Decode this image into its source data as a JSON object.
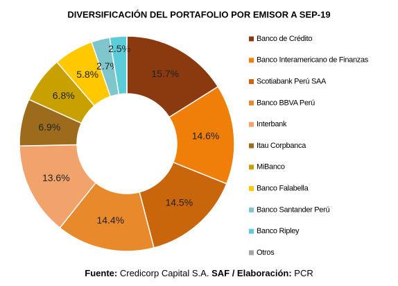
{
  "chart_data": {
    "type": "donut",
    "title": "DIVERSIFICACIÓN DEL PORTAFOLIO POR EMISOR A SEP-19",
    "categories": [
      "Banco de Crédito",
      "Banco Interamericano de Finanzas",
      "Scotiabank Perú SAA",
      "Banco BBVA Perú",
      "Interbank",
      "Itau Corpbanca",
      "MiBanco",
      "Banco Falabella",
      "Banco Santander Perú",
      "Banco Ripley",
      "Otros"
    ],
    "values": [
      15.7,
      14.6,
      14.5,
      14.4,
      13.6,
      6.9,
      6.8,
      5.8,
      2.7,
      2.5,
      0
    ],
    "value_labels": [
      "15.7%",
      "14.6%",
      "14.5%",
      "14.4%",
      "13.6%",
      "6.9%",
      "6.8%",
      "5.8%",
      "2.7%",
      "2.5%",
      null
    ],
    "colors": [
      "#8B3A0F",
      "#F07F09",
      "#C9650B",
      "#E8892B",
      "#F2A36B",
      "#9C6B1B",
      "#C8A000",
      "#FFC800",
      "#7FC6CC",
      "#5BCDD8",
      "#A6A6A6"
    ],
    "legend": "right",
    "source": [
      {
        "text": "Fuente:",
        "bold": true
      },
      {
        "text": " Credicorp Capital S.A. ",
        "bold": false
      },
      {
        "text": "SAF / Elaboración:",
        "bold": true
      },
      {
        "text": " PCR",
        "bold": false
      }
    ]
  }
}
